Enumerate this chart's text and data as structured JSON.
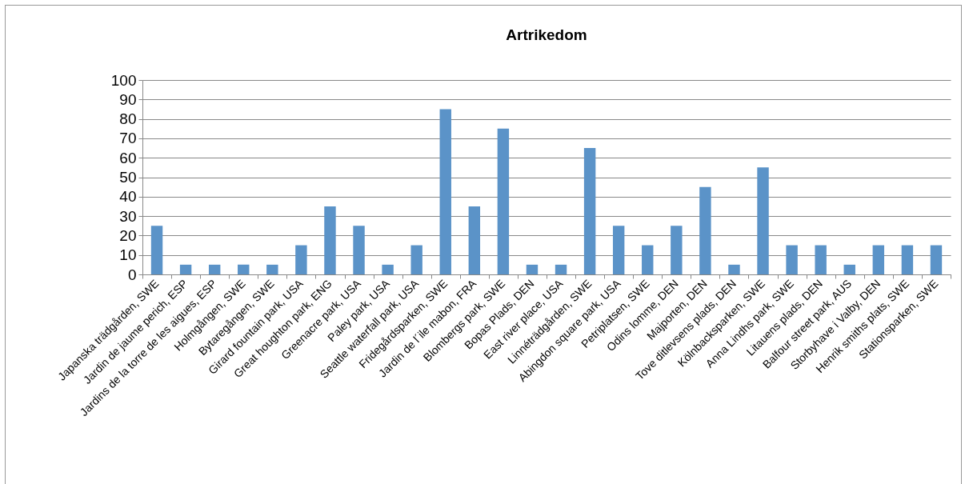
{
  "chart_data": {
    "type": "bar",
    "title": "Artrikedom",
    "categories": [
      "Japanska trädgården, SWE",
      "Jardin de jaume perich, ESP",
      "Jardins de la torre de les aigues, ESP",
      "Holmgången, SWE",
      "Bytaregången, SWE",
      "Girard fountain park, USA",
      "Great houghton park, ENG",
      "Greenacre park, USA",
      "Paley park, USA",
      "Seattle waterfall park, USA",
      "Fridegårdsparken, SWE",
      "Jardin de l´ile mabon, FRA",
      "Blombergs park, SWE",
      "Bopas Plads, DEN",
      "East river place, USA",
      "Linnéträdgården, SWE",
      "Abingdon square park, USA",
      "Petriplatsen, SWE",
      "Odins lomme, DEN",
      "Majporten, DEN",
      "Tove ditlevsens plads, DEN",
      "Kölnbacksparken, SWE",
      "Anna Lindhs park, SWE",
      "Litauens plads, DEN",
      "Balfour street park, AUS",
      "Storbyhave i Valby, DEN",
      "Henrik smiths plats, SWE",
      "Stationsparken, SWE"
    ],
    "values": [
      25,
      5,
      5,
      5,
      5,
      15,
      35,
      25,
      5,
      15,
      85,
      35,
      75,
      5,
      5,
      65,
      25,
      15,
      25,
      45,
      5,
      55,
      15,
      15,
      5,
      15,
      15,
      15
    ],
    "color": "#5b93c8",
    "ylim": [
      0,
      100
    ],
    "yticks": [
      0,
      10,
      20,
      30,
      40,
      50,
      60,
      70,
      80,
      90,
      100
    ],
    "grid": "y"
  }
}
